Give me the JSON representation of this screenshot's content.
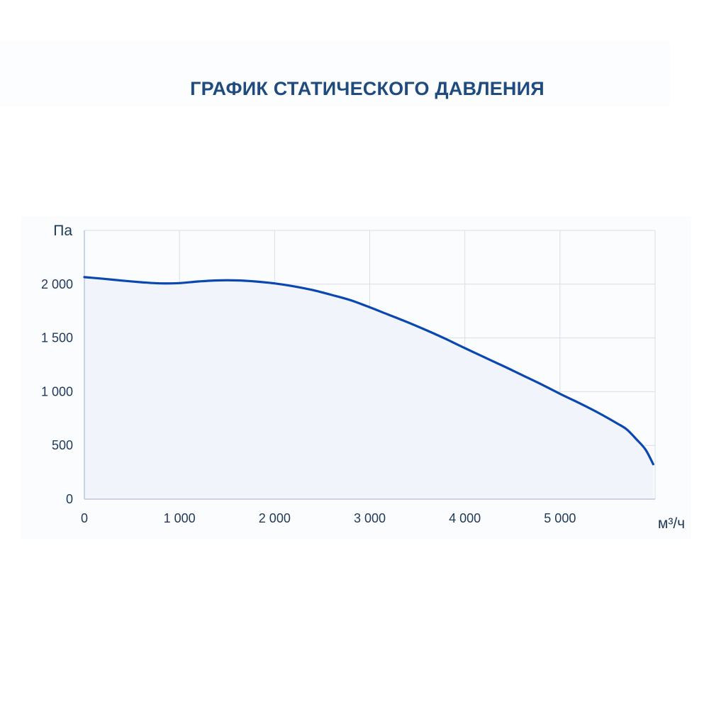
{
  "title": "ГРАФИК СТАТИЧЕСКОГО ДАВЛЕНИЯ",
  "colors": {
    "title": "#1f4b7e",
    "line": "#0a47b0",
    "area": "#f1f5fb",
    "grid": "#d9dee6",
    "axis": "#b9c7dd",
    "text": "#1e3856"
  },
  "chart_data": {
    "type": "area",
    "title": "ГРАФИК СТАТИЧЕСКОГО ДАВЛЕНИЯ",
    "xlabel": "м³/ч",
    "ylabel": "Па",
    "xlim": [
      0,
      6000
    ],
    "ylim": [
      0,
      2500
    ],
    "x_ticks": [
      0,
      1000,
      2000,
      3000,
      4000,
      5000
    ],
    "x_tick_labels": [
      "0",
      "1 000",
      "2 000",
      "3 000",
      "4 000",
      "5 000"
    ],
    "y_ticks": [
      0,
      500,
      1000,
      1500,
      2000
    ],
    "y_tick_labels": [
      "0",
      "500",
      "1 000",
      "1 500",
      "2 000"
    ],
    "grid": true,
    "series": [
      {
        "x": [
          0,
          200,
          400,
          600,
          800,
          1000,
          1200,
          1400,
          1600,
          1800,
          2000,
          2200,
          2400,
          2600,
          2800,
          3000,
          3200,
          3400,
          3600,
          3800,
          4000,
          4200,
          4400,
          4600,
          4800,
          5000,
          5200,
          5400,
          5600,
          5700,
          5800,
          5900,
          5980
        ],
        "y": [
          2065,
          2050,
          2033,
          2018,
          2007,
          2010,
          2025,
          2035,
          2035,
          2025,
          2007,
          1980,
          1945,
          1900,
          1850,
          1785,
          1715,
          1645,
          1570,
          1490,
          1405,
          1322,
          1240,
          1155,
          1070,
          980,
          895,
          805,
          705,
          650,
          560,
          460,
          325
        ]
      }
    ]
  }
}
